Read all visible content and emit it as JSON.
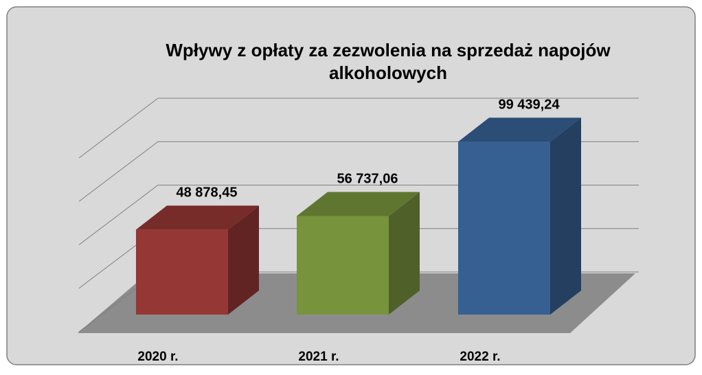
{
  "chart_data": {
    "type": "bar3d",
    "title": "Wpływy z opłaty za zezwolenia na sprzedaż napojów alkoholowych",
    "categories": [
      "2020 r.",
      "2021 r.",
      "2022 r."
    ],
    "values": [
      48878.45,
      56737.06,
      99439.24
    ],
    "value_labels": [
      "48 878,45",
      "56 737,06",
      "99 439,24"
    ],
    "colors": [
      "#953735",
      "#77933c",
      "#376092"
    ],
    "ylim": [
      0,
      100000
    ],
    "yticks": [
      0,
      25000,
      50000,
      75000,
      100000
    ],
    "grid": true
  }
}
